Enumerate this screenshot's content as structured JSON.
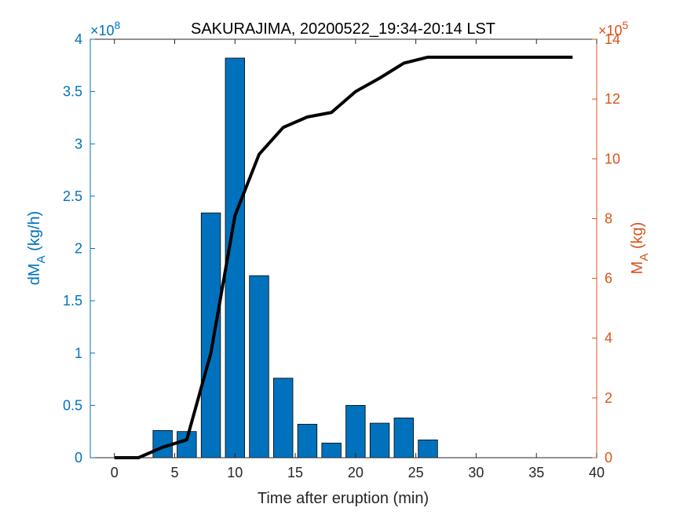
{
  "chart_data": {
    "type": "bar",
    "title": "SAKURAJIMA, 20200522_19:34-20:14 LST",
    "xlabel": "Time after eruption (min)",
    "xlim": [
      -2,
      40
    ],
    "xticks": [
      0,
      5,
      10,
      15,
      20,
      25,
      30,
      35,
      40
    ],
    "left_axis": {
      "label_main": "dM",
      "label_sub": "A",
      "label_units": " (kg/h)",
      "exponent_label": "×10",
      "exponent": "8",
      "ylim": [
        0,
        4
      ],
      "ticks": [
        0,
        0.5,
        1,
        1.5,
        2,
        2.5,
        3,
        3.5,
        4
      ],
      "tick_labels": [
        "0",
        "0.5",
        "1",
        "1.5",
        "2",
        "2.5",
        "3",
        "3.5",
        "4"
      ],
      "color": "#0072BD"
    },
    "right_axis": {
      "label_main": "M",
      "label_sub": "A",
      "label_units": " (kg)",
      "exponent_label": "×10",
      "exponent": "5",
      "ylim": [
        0,
        14
      ],
      "ticks": [
        0,
        2,
        4,
        6,
        8,
        10,
        12,
        14
      ],
      "tick_labels": [
        "0",
        "2",
        "4",
        "6",
        "8",
        "10",
        "12",
        "14"
      ],
      "color": "#D95319"
    },
    "bar_series": {
      "axis": "left",
      "x": [
        4,
        6,
        8,
        10,
        12,
        14,
        16,
        18,
        20,
        22,
        24,
        26
      ],
      "values": [
        0.26,
        0.25,
        2.34,
        3.82,
        1.74,
        0.76,
        0.32,
        0.14,
        0.5,
        0.33,
        0.38,
        0.17
      ],
      "bar_width": 1.6,
      "color": "#0072BD"
    },
    "line_series": {
      "axis": "right",
      "x": [
        0,
        2,
        4,
        6,
        8,
        10,
        12,
        14,
        16,
        18,
        20,
        22,
        24,
        26,
        28,
        30,
        32,
        34,
        36,
        38
      ],
      "values": [
        0,
        0,
        0.35,
        0.6,
        3.5,
        8.1,
        10.15,
        11.05,
        11.4,
        11.55,
        12.25,
        12.7,
        13.2,
        13.4,
        13.4,
        13.4,
        13.4,
        13.4,
        13.4,
        13.4
      ],
      "color": "#000000"
    }
  }
}
